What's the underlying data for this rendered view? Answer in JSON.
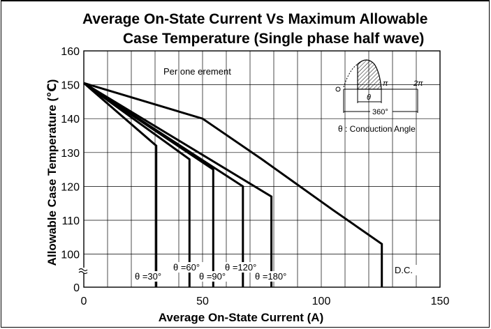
{
  "chart_data": {
    "type": "line",
    "title_line1": "Average On-State Current Vs Maximum Allowable",
    "title_line2": "Case Temperature (Single phase half wave)",
    "xlabel": "Average On-State Current (A)",
    "ylabel": "Allowable Case Temperature (℃)",
    "xlim": [
      0,
      150
    ],
    "ylim": [
      90,
      160
    ],
    "x_ticks": [
      0,
      50,
      100,
      150
    ],
    "x_tick_labels": [
      "0",
      "50",
      "100",
      "150"
    ],
    "y_ticks": [
      100,
      110,
      120,
      130,
      140,
      150,
      160
    ],
    "y_tick_labels": [
      "100",
      "110",
      "120",
      "130",
      "140",
      "150",
      "160"
    ],
    "y_axis_break": true,
    "y_axis_bottom_label": "0",
    "grid": true,
    "annotation": "Per one erement",
    "inset": {
      "label_pi": "π",
      "label_2pi": "2π",
      "label_theta": "θ",
      "label_360": "360°",
      "caption": "θ : Conduction Angle"
    },
    "series": [
      {
        "name": "θ=30°",
        "label": "θ =30°",
        "x": [
          0,
          30.5
        ],
        "y": [
          150.5,
          132
        ]
      },
      {
        "name": "θ=60°",
        "label": "θ =60°",
        "x": [
          0,
          44.5
        ],
        "y": [
          150.5,
          128
        ]
      },
      {
        "name": "θ=90°",
        "label": "θ =90°",
        "x": [
          0,
          54.5
        ],
        "y": [
          150.5,
          125
        ]
      },
      {
        "name": "θ=120°",
        "label": "θ =120°",
        "x": [
          0,
          67
        ],
        "y": [
          150.5,
          120
        ]
      },
      {
        "name": "θ=180°",
        "label": "θ =180°",
        "x": [
          0,
          79
        ],
        "y": [
          150.5,
          117
        ]
      },
      {
        "name": "D.C.",
        "label": "D.C.",
        "x": [
          0,
          50,
          75,
          105,
          125.5
        ],
        "y": [
          150.5,
          140,
          128,
          113,
          103
        ]
      }
    ]
  }
}
